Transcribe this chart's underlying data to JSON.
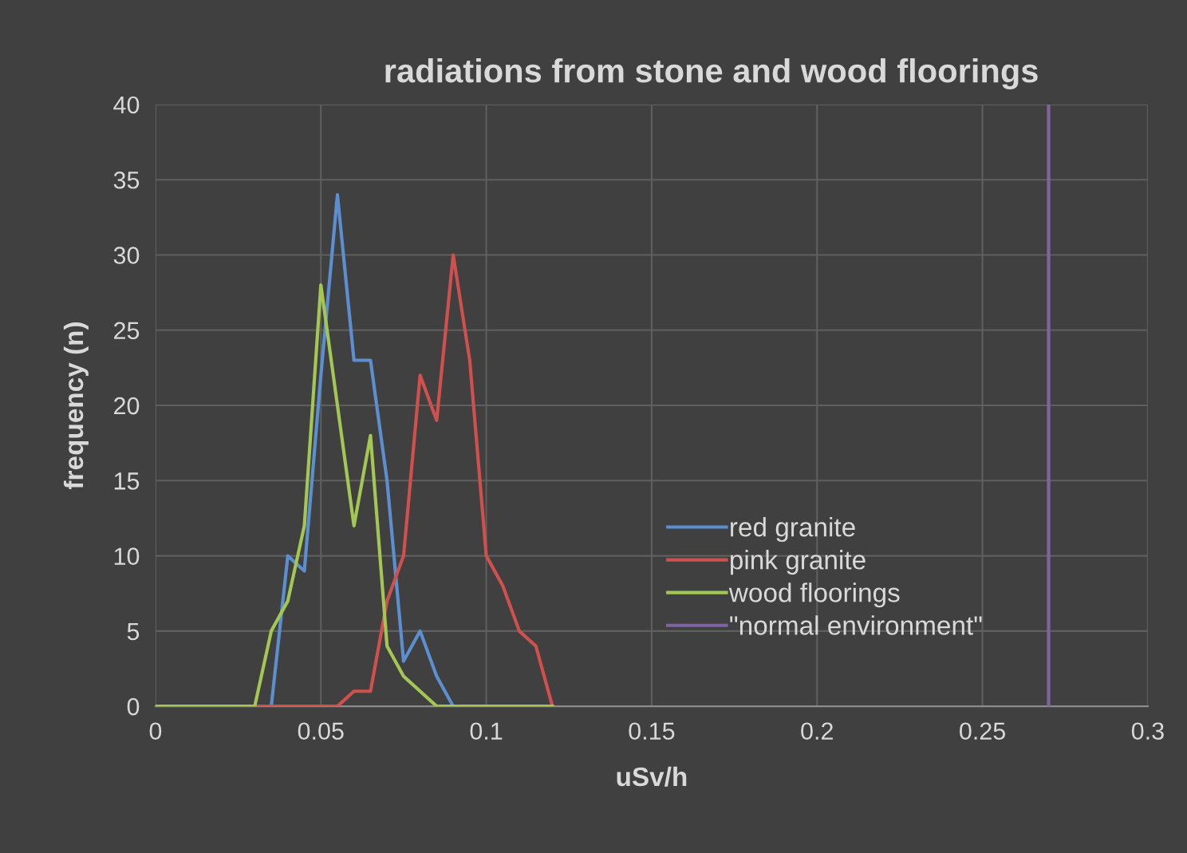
{
  "chart_data": {
    "type": "line",
    "title": "radiations from stone and wood floorings",
    "xlabel": "uSv/h",
    "ylabel": "frequency (n)",
    "xlim": [
      0,
      0.3
    ],
    "xticks": [
      0,
      0.05,
      0.1,
      0.15,
      0.2,
      0.25,
      0.3
    ],
    "ylim": [
      0,
      40
    ],
    "yticks": [
      0,
      5,
      10,
      15,
      20,
      25,
      30,
      35,
      40
    ],
    "grid": true,
    "legend": "lower center",
    "marker": "none",
    "line_style": "solid",
    "series": [
      {
        "name": "red granite",
        "color": "#5b8fd0",
        "x": [
          0,
          0.035,
          0.04,
          0.045,
          0.05,
          0.055,
          0.06,
          0.065,
          0.07,
          0.075,
          0.08,
          0.085,
          0.09
        ],
        "values": [
          0,
          0,
          10,
          9,
          22,
          34,
          23,
          23,
          15,
          3,
          5,
          2,
          0
        ]
      },
      {
        "name": "pink granite",
        "color": "#d0504d",
        "x": [
          0,
          0.055,
          0.06,
          0.065,
          0.07,
          0.075,
          0.08,
          0.085,
          0.09,
          0.095,
          0.1,
          0.105,
          0.11,
          0.115,
          0.12
        ],
        "values": [
          0,
          0,
          1,
          1,
          7,
          10,
          22,
          19,
          30,
          23,
          10,
          8,
          5,
          4,
          0
        ]
      },
      {
        "name": "wood floorings",
        "color": "#a4c754",
        "x": [
          0,
          0.025,
          0.03,
          0.035,
          0.04,
          0.045,
          0.05,
          0.055,
          0.06,
          0.065,
          0.07,
          0.075,
          0.08,
          0.085,
          0.12
        ],
        "values": [
          0,
          0,
          0,
          5,
          7,
          12,
          28,
          20,
          12,
          18,
          4,
          2,
          1,
          0,
          0
        ]
      },
      {
        "name": "\"normal environment\"",
        "color": "#8064a2",
        "x": [
          0.27,
          0.27
        ],
        "values": [
          0,
          40
        ]
      }
    ]
  }
}
